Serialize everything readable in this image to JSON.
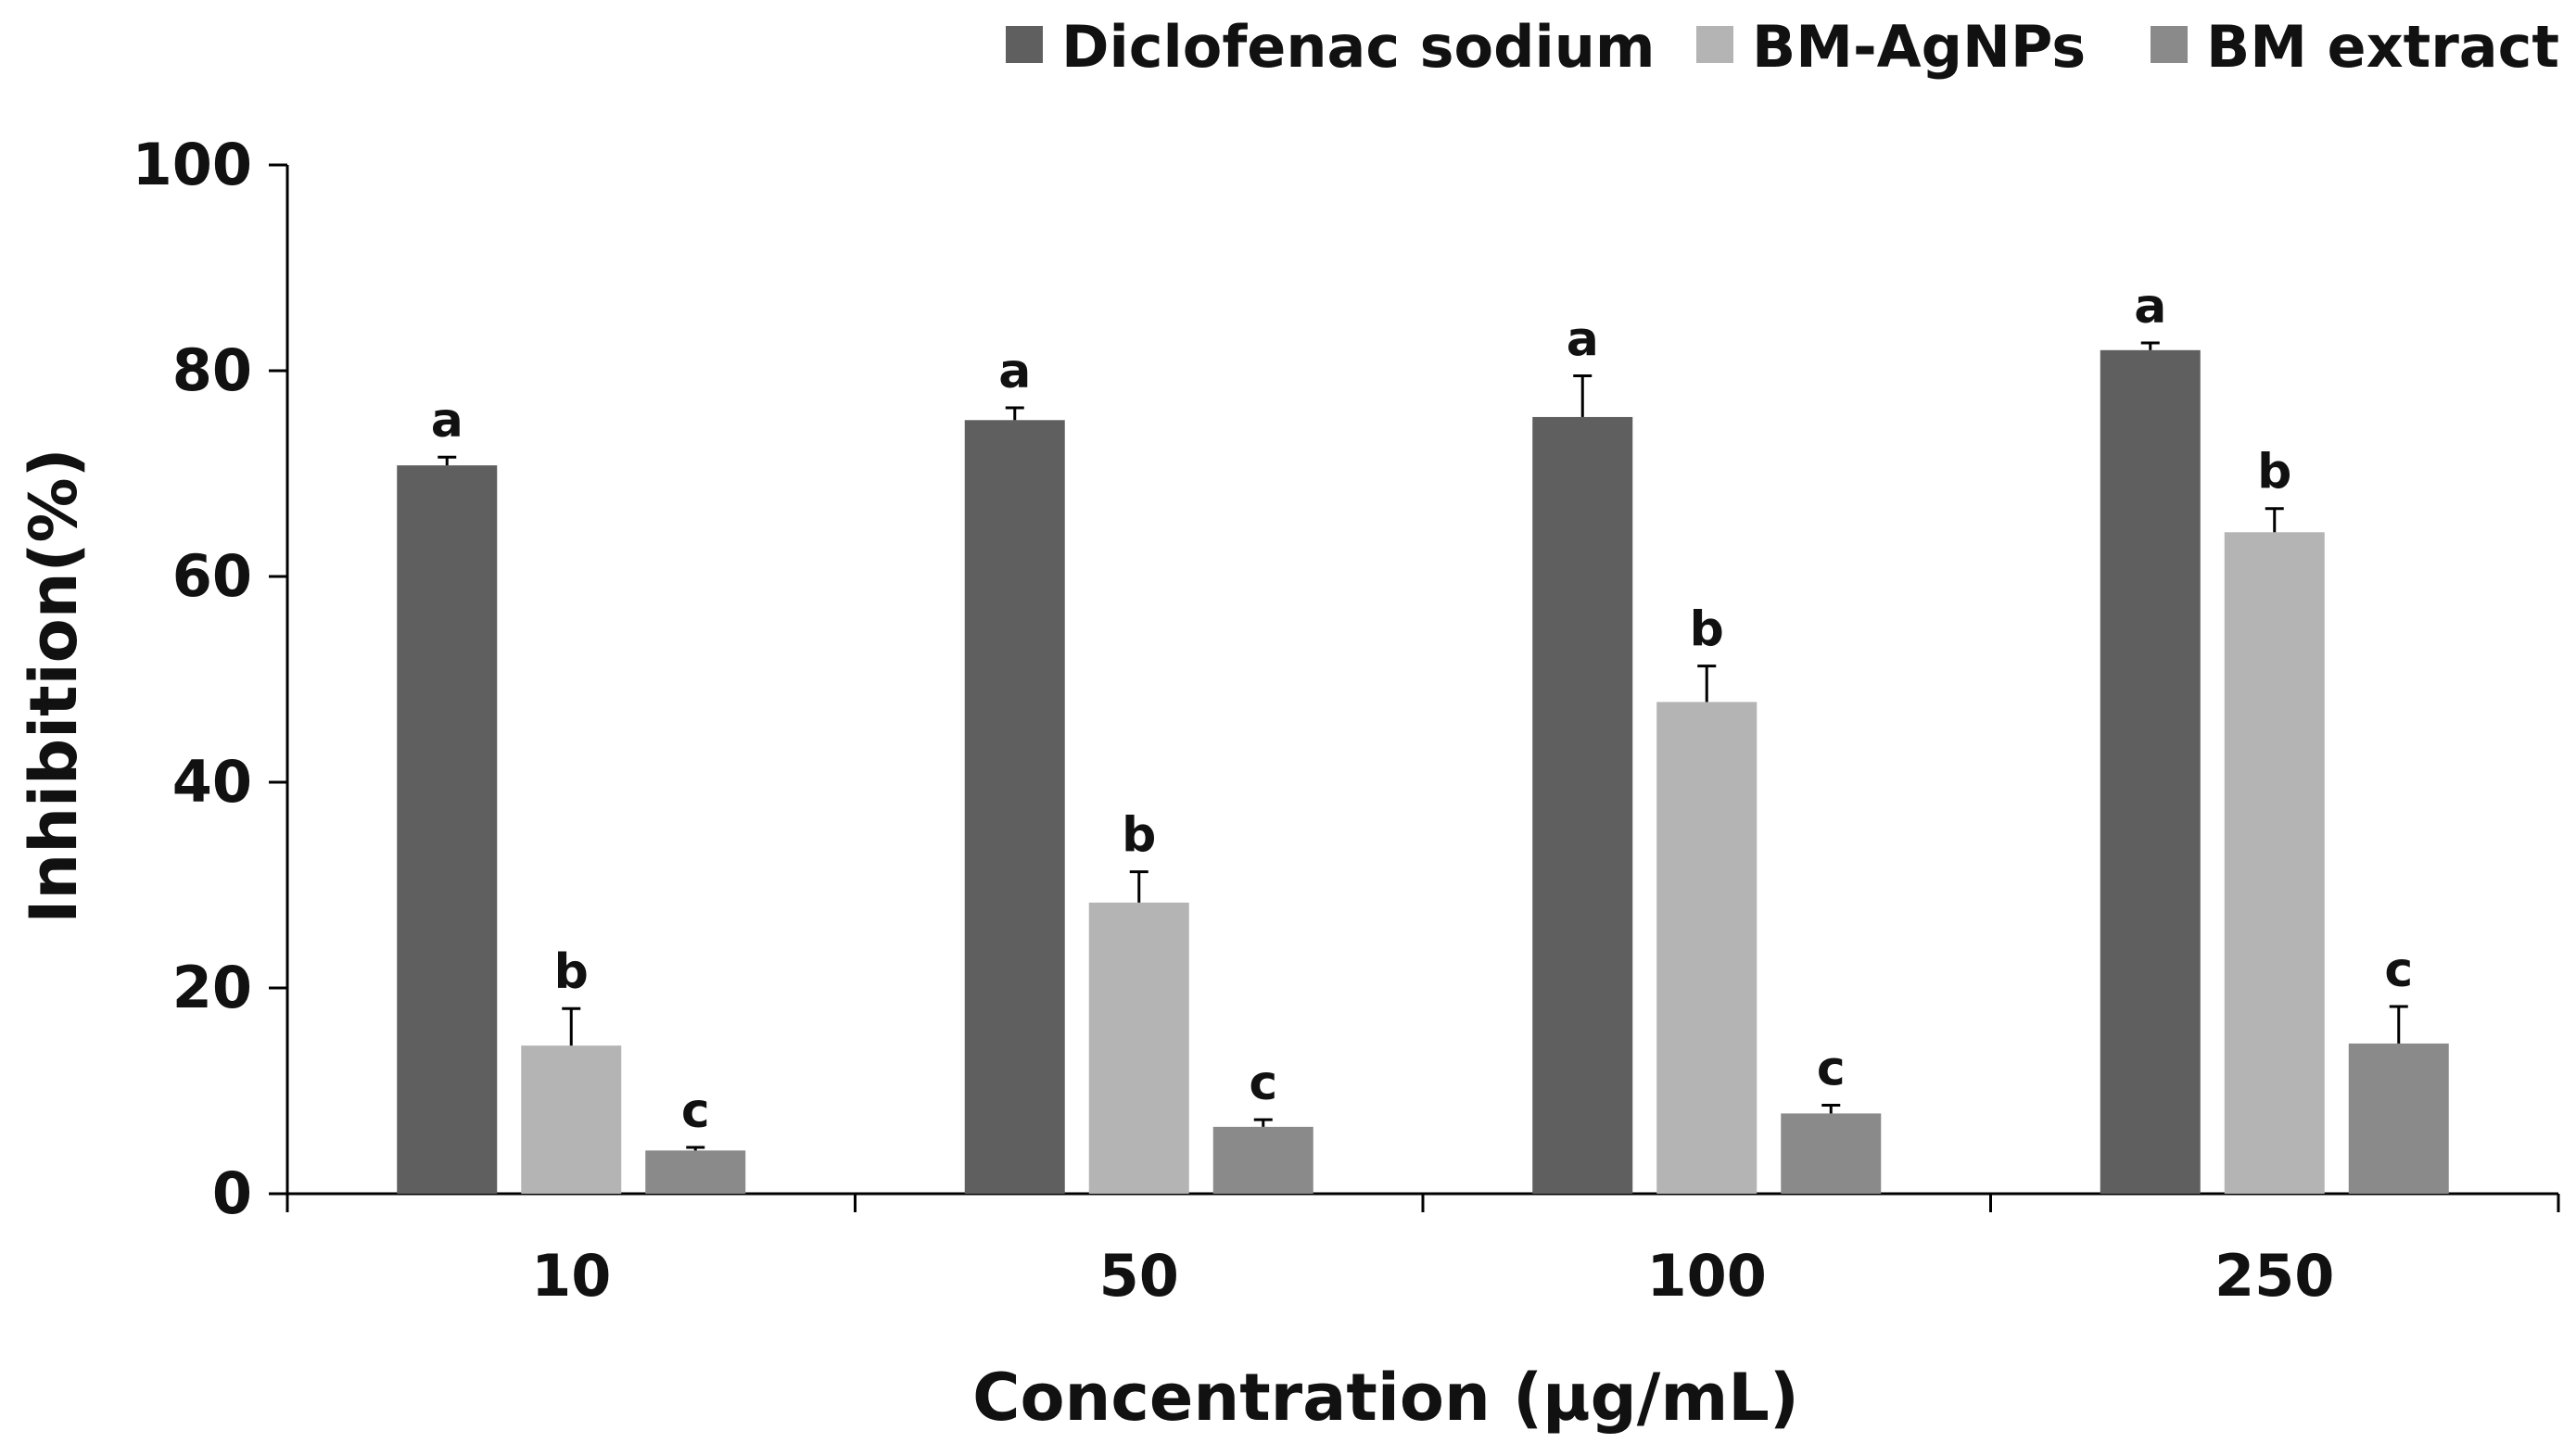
{
  "chart_data": {
    "type": "bar",
    "title": "",
    "xlabel": "Concentration (µg/mL)",
    "ylabel": "Inhibition(%)",
    "ylim": [
      0,
      100
    ],
    "yticks": [
      0,
      20,
      40,
      60,
      80,
      100
    ],
    "categories": [
      "10",
      "50",
      "100",
      "250"
    ],
    "series": [
      {
        "name": "Diclofenac sodium",
        "color": "#5f5f5f",
        "values": [
          70.8,
          75.2,
          75.5,
          82.0
        ],
        "errors": [
          0.8,
          1.2,
          4.0,
          0.7
        ],
        "letters": [
          "a",
          "a",
          "a",
          "a"
        ]
      },
      {
        "name": "BM-AgNPs",
        "color": "#b4b4b4",
        "values": [
          14.4,
          28.3,
          47.8,
          64.3
        ],
        "errors": [
          3.6,
          3.0,
          3.5,
          2.3
        ],
        "letters": [
          "b",
          "b",
          "b",
          "b"
        ]
      },
      {
        "name": "BM extract",
        "color": "#8a8a8a",
        "values": [
          4.2,
          6.5,
          7.8,
          14.6
        ],
        "errors": [
          0.3,
          0.7,
          0.8,
          3.6
        ],
        "letters": [
          "c",
          "c",
          "c",
          "c"
        ]
      }
    ],
    "legend_position": "top-right",
    "grid": false
  }
}
